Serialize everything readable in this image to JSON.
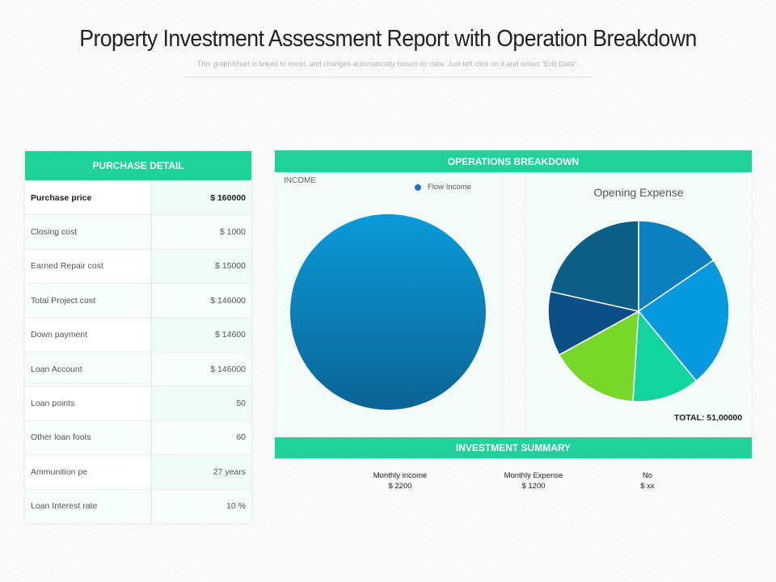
{
  "title": "Property Investment Assessment Report with Operation Breakdown",
  "subtitle": "This graph/chart  is linked to excel, and changes  automatically  based  on data.  Just left click on it and select \"Edit Data\".",
  "purchase_detail": {
    "header": "PURCHASE DETAIL",
    "rows": [
      {
        "label": "Purchase price",
        "value": "$ 160000"
      },
      {
        "label": "Closing cost",
        "value": "$ 1000"
      },
      {
        "label": "Earned Repair cost",
        "value": "$ 15000"
      },
      {
        "label": "Total Project cost",
        "value": "$ 146000"
      },
      {
        "label": "Down payment",
        "value": "$ 14600"
      },
      {
        "label": "Loan Account",
        "value": "$ 146000"
      },
      {
        "label": "Loan points",
        "value": "50"
      },
      {
        "label": "Other loan foots",
        "value": "60"
      },
      {
        "label": "Ammunition   pe",
        "value": "27 years"
      },
      {
        "label": "Loan Interest rate",
        "value": "10 %"
      }
    ]
  },
  "operations": {
    "header": "OPERATIONS BREAKDOWN",
    "income_label": "INCOME",
    "opening_title": "Opening Expense",
    "total": "TOTAL:  51,00000"
  },
  "investment_summary": {
    "header": "INVESTMENT SUMMARY",
    "items": [
      {
        "label": "Monthly income",
        "value": "$ 2200"
      },
      {
        "label": "Monthly Expense",
        "value": "$ 1200"
      },
      {
        "label": "No",
        "value": "$ xx"
      }
    ]
  },
  "colors": {
    "accent": "#1dd39a"
  },
  "chart_data": [
    {
      "type": "pie",
      "title": "INCOME",
      "series": [
        {
          "name": "Flow Income",
          "values": [
            100
          ]
        }
      ],
      "legend": [
        "Flow Income"
      ],
      "legend_position": "top-right",
      "colors": [
        "#0e8fcf"
      ]
    },
    {
      "type": "pie",
      "title": "Opening Expense",
      "values": [
        15.5,
        23.5,
        12,
        16,
        11.5,
        21.5
      ],
      "colors": [
        "#0b7fc0",
        "#0799de",
        "#12d49e",
        "#78d82a",
        "#0c4f86",
        "#0c5e86"
      ]
    }
  ]
}
